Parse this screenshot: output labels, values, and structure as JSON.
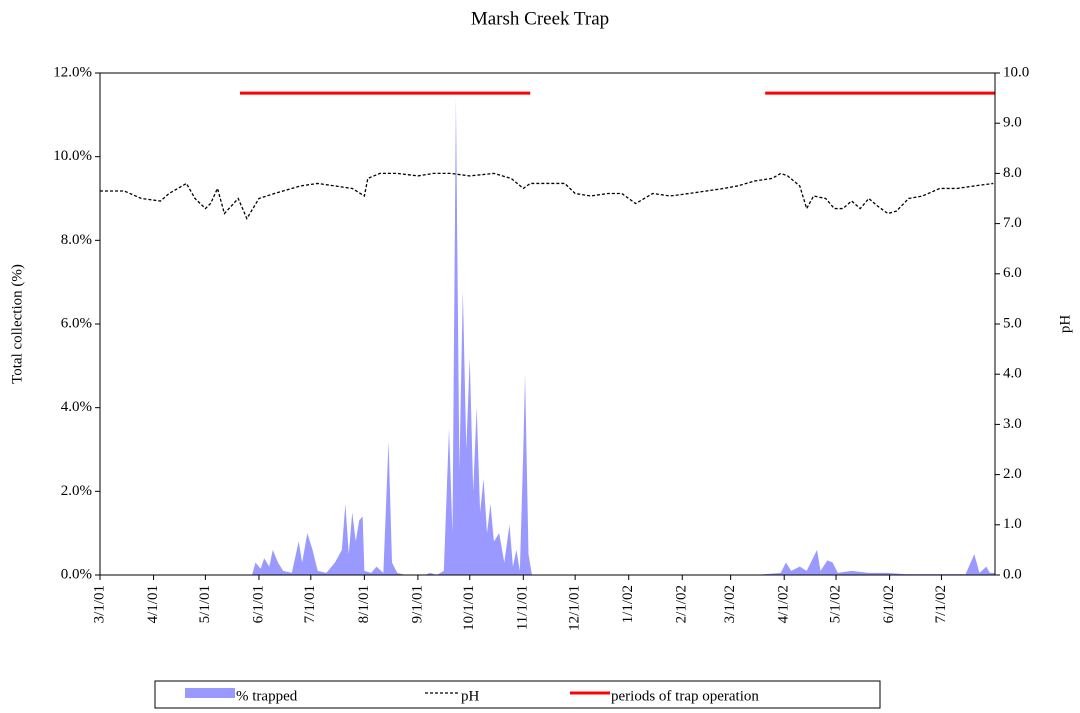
{
  "chart_data": {
    "type": "area-line",
    "title": "Marsh Creek Trap",
    "y_label": "Total collection (%)",
    "y2_label": "pH",
    "xlim": [
      "3/1/01",
      "8/1/02"
    ],
    "xticks": [
      "3/1/01",
      "4/1/01",
      "5/1/01",
      "6/1/01",
      "7/1/01",
      "8/1/01",
      "9/1/01",
      "10/1/01",
      "11/1/01",
      "12/1/01",
      "1/1/02",
      "2/1/02",
      "3/1/02",
      "4/1/02",
      "5/1/02",
      "6/1/02",
      "7/1/02"
    ],
    "ylim": [
      0,
      12
    ],
    "yticks": [
      {
        "value": 0,
        "label": "0.0%"
      },
      {
        "value": 2,
        "label": "2.0%"
      },
      {
        "value": 4,
        "label": "4.0%"
      },
      {
        "value": 6,
        "label": "6.0%"
      },
      {
        "value": 8,
        "label": "8.0%"
      },
      {
        "value": 10,
        "label": "10.0%"
      },
      {
        "value": 12,
        "label": "12.0%"
      }
    ],
    "y2lim": [
      0,
      10
    ],
    "y2ticks": [
      {
        "value": 0,
        "label": "0.0"
      },
      {
        "value": 1,
        "label": "1.0"
      },
      {
        "value": 2,
        "label": "2.0"
      },
      {
        "value": 3,
        "label": "3.0"
      },
      {
        "value": 4,
        "label": "4.0"
      },
      {
        "value": 5,
        "label": "5.0"
      },
      {
        "value": 6,
        "label": "6.0"
      },
      {
        "value": 7,
        "label": "7.0"
      },
      {
        "value": 8,
        "label": "8.0"
      },
      {
        "value": 9,
        "label": "9.0"
      },
      {
        "value": 10,
        "label": "10.0"
      }
    ],
    "series": [
      {
        "name": "% trapped",
        "type": "area",
        "color": "#9999ff",
        "x": [
          "3/1/01",
          "5/28/01",
          "5/30/01",
          "6/2/01",
          "6/4/01",
          "6/7/01",
          "6/9/01",
          "6/12/01",
          "6/15/01",
          "6/20/01",
          "6/24/01",
          "6/26/01",
          "6/29/01",
          "7/2/01",
          "7/5/01",
          "7/10/01",
          "7/15/01",
          "7/19/01",
          "7/21/01",
          "7/23/01",
          "7/25/01",
          "7/27/01",
          "7/29/01",
          "7/31/01",
          "8/1/01",
          "8/5/01",
          "8/8/01",
          "8/12/01",
          "8/15/01",
          "8/17/01",
          "8/20/01",
          "8/25/01",
          "9/5/01",
          "9/8/01",
          "9/12/01",
          "9/16/01",
          "9/19/01",
          "9/21/01",
          "9/23/01",
          "9/25/01",
          "9/27/01",
          "9/29/01",
          "10/1/01",
          "10/3/01",
          "10/5/01",
          "10/7/01",
          "10/9/01",
          "10/11/01",
          "10/13/01",
          "10/15/01",
          "10/18/01",
          "10/21/01",
          "10/24/01",
          "10/26/01",
          "10/28/01",
          "10/30/01",
          "11/1/01",
          "11/2/01",
          "11/4/01",
          "11/6/01",
          "3/15/02",
          "3/30/02",
          "4/2/02",
          "4/5/02",
          "4/10/02",
          "4/14/02",
          "4/20/02",
          "4/22/02",
          "4/26/02",
          "4/29/02",
          "5/2/02",
          "5/10/02",
          "5/20/02",
          "5/31/02",
          "6/10/02",
          "7/15/02",
          "7/19/02",
          "7/20/02",
          "7/23/02",
          "7/27/02",
          "7/29/02",
          "8/1/02"
        ],
        "values": [
          0,
          0,
          0.3,
          0.15,
          0.4,
          0.2,
          0.6,
          0.3,
          0.1,
          0.05,
          0.8,
          0.3,
          1.0,
          0.6,
          0.1,
          0.05,
          0.3,
          0.6,
          1.7,
          0.5,
          1.5,
          0.8,
          1.3,
          1.4,
          0.1,
          0.05,
          0.2,
          0.05,
          3.2,
          0.3,
          0.05,
          0,
          0,
          0.05,
          0,
          0.1,
          3.5,
          1.0,
          11.4,
          2.5,
          6.8,
          3.0,
          5.2,
          2.0,
          4.0,
          1.5,
          2.3,
          1.0,
          1.7,
          0.8,
          1.0,
          0.3,
          1.2,
          0.2,
          0.6,
          0.1,
          3.0,
          4.8,
          0.5,
          0,
          0,
          0.05,
          0.3,
          0.1,
          0.2,
          0.1,
          0.6,
          0.1,
          0.35,
          0.3,
          0.05,
          0.1,
          0.05,
          0.05,
          0.02,
          0.02,
          0.4,
          0.5,
          0.05,
          0.2,
          0.05,
          0.05
        ]
      },
      {
        "name": "pH",
        "type": "line",
        "axis": "y2",
        "color": "#000000",
        "dash": true,
        "x": [
          "3/1/01",
          "3/15/01",
          "3/25/01",
          "4/5/01",
          "4/10/01",
          "4/20/01",
          "4/25/01",
          "5/1/01",
          "5/4/01",
          "5/8/01",
          "5/12/01",
          "5/20/01",
          "5/25/01",
          "6/1/01",
          "6/10/01",
          "6/20/01",
          "6/25/01",
          "7/5/01",
          "7/15/01",
          "7/25/01",
          "8/1/01",
          "8/3/01",
          "8/10/01",
          "8/20/01",
          "9/1/01",
          "9/10/01",
          "9/20/01",
          "10/1/01",
          "10/15/01",
          "10/25/01",
          "11/1/01",
          "11/5/01",
          "11/15/01",
          "11/25/01",
          "12/1/01",
          "12/10/01",
          "12/20/01",
          "12/28/01",
          "1/5/02",
          "1/15/02",
          "1/25/02",
          "2/5/02",
          "2/15/02",
          "2/25/02",
          "3/5/02",
          "3/15/02",
          "3/25/02",
          "3/30/02",
          "4/3/02",
          "4/10/02",
          "4/14/02",
          "4/18/02",
          "4/25/02",
          "4/30/02",
          "5/5/02",
          "5/10/02",
          "5/15/02",
          "5/20/02",
          "5/25/02",
          "5/31/02",
          "6/5/02",
          "6/12/02",
          "6/20/02",
          "6/30/02",
          "7/10/02",
          "7/20/02",
          "7/31/02"
        ],
        "values": [
          7.65,
          7.65,
          7.5,
          7.45,
          7.6,
          7.8,
          7.5,
          7.3,
          7.4,
          7.7,
          7.2,
          7.5,
          7.1,
          7.5,
          7.6,
          7.7,
          7.75,
          7.8,
          7.75,
          7.7,
          7.55,
          7.9,
          8.0,
          8.0,
          7.95,
          8.0,
          8.0,
          7.95,
          8.0,
          7.9,
          7.7,
          7.8,
          7.8,
          7.8,
          7.6,
          7.55,
          7.6,
          7.6,
          7.4,
          7.6,
          7.55,
          7.6,
          7.65,
          7.7,
          7.75,
          7.85,
          7.9,
          8.0,
          7.95,
          7.75,
          7.3,
          7.55,
          7.5,
          7.3,
          7.3,
          7.45,
          7.3,
          7.5,
          7.35,
          7.2,
          7.25,
          7.5,
          7.55,
          7.7,
          7.7,
          7.75,
          7.8
        ]
      },
      {
        "name": "periods of trap operation",
        "type": "line",
        "axis": "y2",
        "color": "#ff0000",
        "x": [
          "5/21/01",
          "11/5/01",
          null,
          "3/21/02",
          "8/1/02"
        ],
        "values": [
          9.6,
          9.6,
          null,
          9.6,
          9.6
        ]
      }
    ]
  }
}
